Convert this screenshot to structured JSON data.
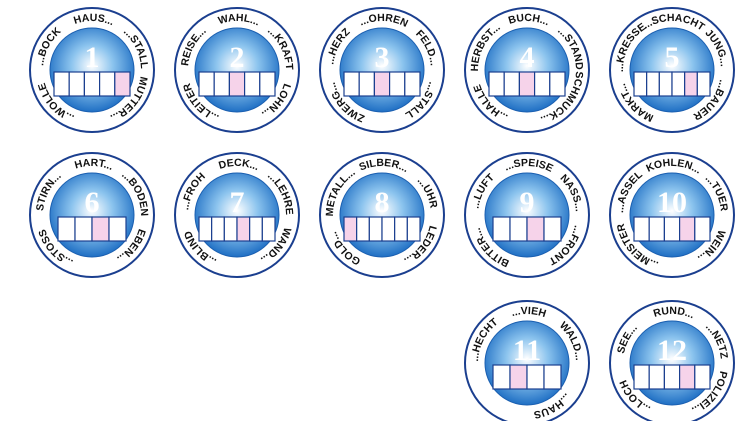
{
  "circles": [
    {
      "number": "1",
      "words": [
        "...BOCK",
        "HAUS...",
        "...STALL",
        "MUTTER...",
        "...WOLLE"
      ],
      "boxes": 5,
      "highlight": 4
    },
    {
      "number": "2",
      "words": [
        "REISE...",
        "WAHL...",
        "...KRAFT",
        "LOHN...",
        "...LEITER"
      ],
      "boxes": 5,
      "highlight": 2
    },
    {
      "number": "3",
      "words": [
        "...HERZ",
        "...OHREN",
        "FELD...",
        "...STALL",
        "ZWERG..."
      ],
      "boxes": 5,
      "highlight": 2
    },
    {
      "number": "4",
      "words": [
        "HERBST...",
        "BUCH...",
        "...STAND",
        "SCHMUCK...",
        "...HALLE"
      ],
      "boxes": 5,
      "highlight": 2
    },
    {
      "number": "5",
      "words": [
        "...KRESSE",
        "...SCHACHT",
        "JUNG...",
        "...BAUER",
        "MARKT..."
      ],
      "boxes": 6,
      "highlight": 4
    },
    {
      "number": "6",
      "words": [
        "STIRN...",
        "HART...",
        "...BODEN",
        "EBEN...",
        "...STOSS"
      ],
      "boxes": 4,
      "highlight": 2
    },
    {
      "number": "7",
      "words": [
        "...FROH",
        "DECK...",
        "...LEHRE",
        "WAND...",
        "...BLIND"
      ],
      "boxes": 6,
      "highlight": 3
    },
    {
      "number": "8",
      "words": [
        "METALL...",
        "SILBER...",
        "...UHR",
        "LEDER...",
        "GOLD..."
      ],
      "boxes": 6,
      "highlight": 0
    },
    {
      "number": "9",
      "words": [
        "...LUFT",
        "...SPEISE",
        "NASS...",
        "...FRONT",
        "BITTER..."
      ],
      "boxes": 4,
      "highlight": 2
    },
    {
      "number": "10",
      "words": [
        "...ASSEL",
        "KOHLEN...",
        "...TUER",
        "WEIN...",
        "...MEISTER"
      ],
      "boxes": 5,
      "highlight": 3
    },
    {
      "number": "11",
      "words": [
        "...HECHT",
        "...VIEH",
        "WALD...",
        "...HAUS"
      ],
      "boxes": 4,
      "highlight": 1
    },
    {
      "number": "12",
      "words": [
        "SEE...",
        "RUND...",
        "...NETZ",
        "POLIZEI...",
        "...LOCH"
      ],
      "boxes": 5,
      "highlight": 3
    }
  ]
}
